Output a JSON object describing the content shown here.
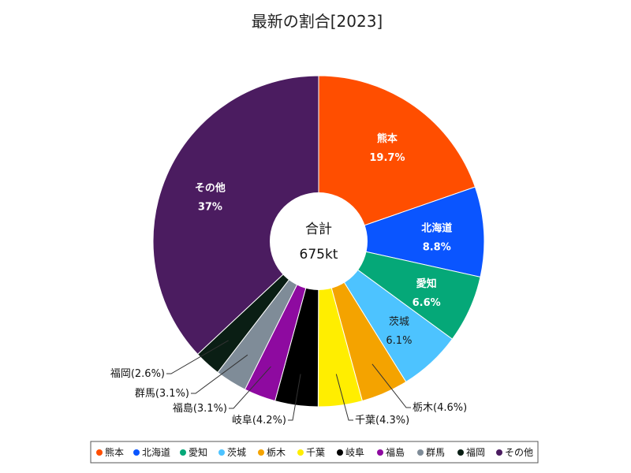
{
  "chart_data": {
    "type": "pie",
    "title": "最新の割合[2023]",
    "center_label": "合計",
    "center_value": "675kt",
    "slices": [
      {
        "name": "熊本",
        "value": 19.7,
        "pct_label": "19.7%",
        "color": "#ff4e00"
      },
      {
        "name": "北海道",
        "value": 8.8,
        "pct_label": "8.8%",
        "color": "#0a55ff"
      },
      {
        "name": "愛知",
        "value": 6.6,
        "pct_label": "6.6%",
        "color": "#05a878"
      },
      {
        "name": "茨城",
        "value": 6.1,
        "pct_label": "6.1%",
        "color": "#4dc3ff"
      },
      {
        "name": "栃木",
        "value": 4.6,
        "pct_label": "(4.6%)",
        "color": "#f4a300"
      },
      {
        "name": "千葉",
        "value": 4.3,
        "pct_label": "(4.3%)",
        "color": "#ffee00"
      },
      {
        "name": "岐阜",
        "value": 4.2,
        "pct_label": "(4.2%)",
        "color": "#000000"
      },
      {
        "name": "福島",
        "value": 3.1,
        "pct_label": "(3.1%)",
        "color": "#8e0aa0"
      },
      {
        "name": "群馬",
        "value": 3.1,
        "pct_label": "(3.1%)",
        "color": "#7f8c98"
      },
      {
        "name": "福岡",
        "value": 2.6,
        "pct_label": "(2.6%)",
        "color": "#0a1e14"
      },
      {
        "name": "その他",
        "value": 37,
        "pct_label": "37%",
        "color": "#4b1c60"
      }
    ],
    "legend_placement": "bottom"
  }
}
